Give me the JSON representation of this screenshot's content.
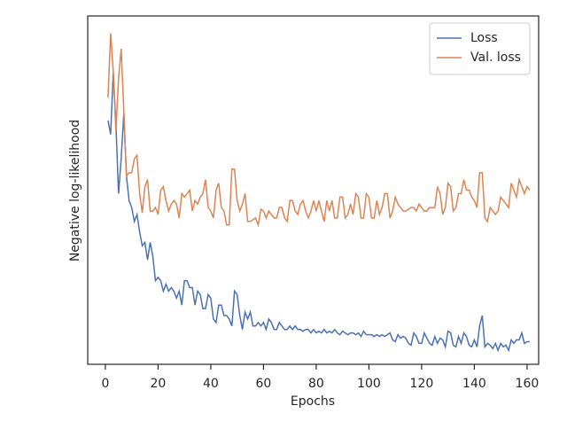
{
  "chart_data": {
    "type": "line",
    "xlabel": "Epochs",
    "ylabel": "Negative log-likelihood",
    "x": [
      1,
      2,
      3,
      4,
      5,
      6,
      7,
      8,
      9,
      10,
      11,
      12,
      13,
      14,
      15,
      16,
      17,
      18,
      19,
      20,
      21,
      22,
      23,
      24,
      25,
      26,
      27,
      28,
      29,
      30,
      31,
      32,
      33,
      34,
      35,
      36,
      37,
      38,
      39,
      40,
      41,
      42,
      43,
      44,
      45,
      46,
      47,
      48,
      49,
      50,
      51,
      52,
      53,
      54,
      55,
      56,
      57,
      58,
      59,
      60,
      61,
      62,
      63,
      64,
      65,
      66,
      67,
      68,
      69,
      70,
      71,
      72,
      73,
      74,
      75,
      76,
      77,
      78,
      79,
      80,
      81,
      82,
      83,
      84,
      85,
      86,
      87,
      88,
      89,
      90,
      91,
      92,
      93,
      94,
      95,
      96,
      97,
      98,
      99,
      100,
      101,
      102,
      103,
      104,
      105,
      106,
      107,
      108,
      109,
      110,
      111,
      112,
      113,
      114,
      115,
      116,
      117,
      118,
      119,
      120,
      121,
      122,
      123,
      124,
      125,
      126,
      127,
      128,
      129,
      130,
      131,
      132,
      133,
      134,
      135,
      136,
      137,
      138,
      139,
      140,
      141,
      142,
      143,
      144,
      145,
      146,
      147,
      148,
      149,
      150,
      151,
      152,
      153,
      154,
      155,
      156,
      157,
      158,
      159,
      160,
      161
    ],
    "series": [
      {
        "name": "Loss",
        "color": "#4c72b0",
        "values": [
          70,
          66,
          84,
          69,
          49,
          59,
          72,
          54,
          47,
          45,
          41,
          43,
          38,
          34,
          35,
          30,
          35,
          31,
          24,
          25,
          24,
          21,
          23,
          21,
          22,
          21,
          19,
          21,
          17,
          24,
          24,
          22,
          22,
          17,
          21,
          20,
          16,
          16,
          20,
          19,
          13,
          12,
          17,
          17,
          14,
          14,
          13,
          11,
          21,
          20,
          14,
          10,
          15,
          13,
          15,
          11,
          11,
          12,
          11,
          12,
          10,
          13,
          12,
          10,
          10,
          12,
          11,
          10,
          10,
          11,
          10,
          11,
          10,
          10,
          9.5,
          10,
          10,
          9,
          10,
          9,
          9.5,
          9,
          10,
          9,
          9.5,
          9,
          10,
          9,
          8.5,
          9.5,
          9,
          8.5,
          9,
          9,
          8.5,
          9,
          8,
          9.5,
          8.5,
          8.5,
          8.5,
          8,
          8.5,
          8,
          8.5,
          8,
          8.5,
          9,
          7,
          6.5,
          8.5,
          7.5,
          8,
          7.5,
          6,
          5.5,
          9,
          8,
          6,
          6,
          9,
          7.5,
          6,
          5.5,
          8,
          6,
          7.5,
          7,
          5,
          9.5,
          9,
          5.5,
          5,
          8,
          6,
          9,
          8,
          5.5,
          5,
          7,
          5,
          11,
          14,
          5,
          6,
          5.5,
          4.5,
          6,
          4,
          6,
          5,
          5.5,
          4,
          7,
          6,
          7,
          7,
          9,
          6,
          6.5,
          6.5
        ]
      },
      {
        "name": "Val. loss",
        "color": "#dd8452",
        "values": [
          76.6,
          95,
          84,
          67,
          82,
          90.6,
          72.8,
          54,
          55,
          55,
          59,
          60,
          49,
          43.5,
          51,
          53,
          44,
          44,
          45,
          43,
          50,
          51,
          47,
          44,
          46,
          47,
          46,
          42,
          49,
          48,
          49,
          50,
          44,
          47,
          46,
          48,
          49,
          53,
          45,
          44,
          42,
          50,
          52,
          45,
          44,
          40,
          40,
          56,
          56,
          47,
          44,
          46,
          49,
          41,
          41,
          41.5,
          42,
          40,
          44.5,
          44,
          42,
          44,
          43,
          42,
          42,
          45,
          45,
          42,
          41,
          47,
          47,
          44,
          43,
          46,
          47,
          44,
          42,
          44,
          47,
          44,
          47,
          44,
          41,
          47,
          44,
          47,
          42,
          42,
          48,
          48,
          42,
          43,
          46,
          43,
          49,
          48,
          42,
          42,
          49,
          48,
          42,
          42,
          47,
          43,
          45,
          49,
          49,
          42,
          44,
          48,
          46,
          45,
          44,
          44,
          44.5,
          45,
          45,
          44,
          46,
          45,
          44,
          44,
          45,
          45,
          45,
          51,
          49,
          43,
          45,
          52,
          51,
          44,
          45,
          49,
          49,
          53,
          50,
          50,
          48,
          47,
          45,
          55,
          55,
          42,
          41,
          45,
          44,
          43,
          44,
          48,
          47,
          46,
          45,
          52,
          50,
          48,
          53,
          51,
          49,
          51,
          50
        ]
      }
    ],
    "xlim": [
      -6.7,
      164.4
    ],
    "xticks": [
      0,
      20,
      40,
      60,
      80,
      100,
      120,
      140,
      160
    ],
    "ylim": [
      0,
      100
    ],
    "legend": "upper right"
  }
}
